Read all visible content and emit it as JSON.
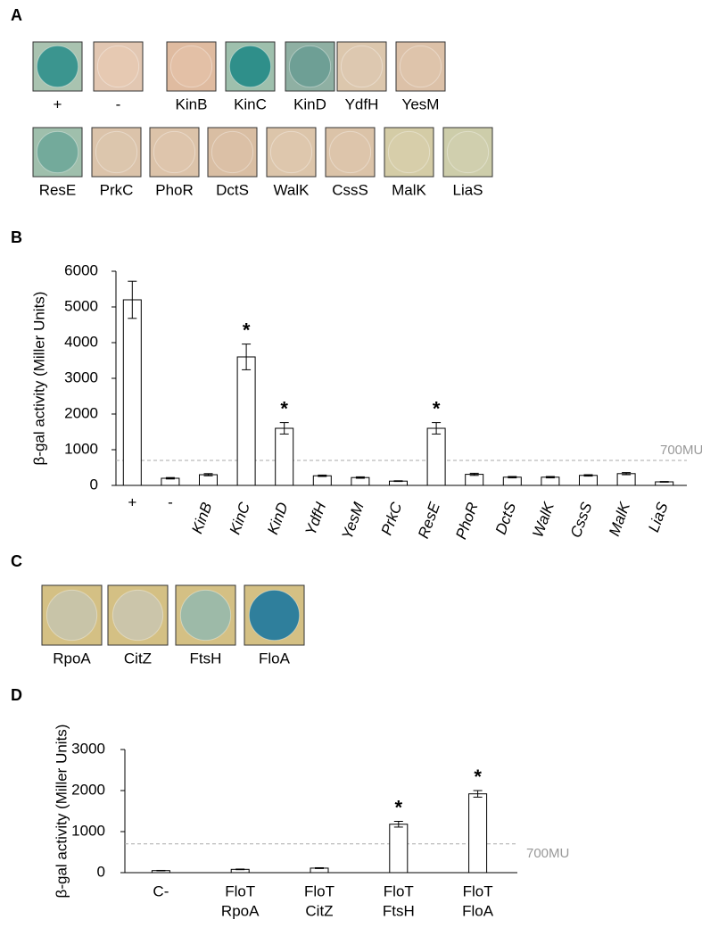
{
  "panel_a": {
    "panel": "A",
    "rows": [
      [
        {
          "label": "+",
          "background": "#a9c3b0",
          "color": "#3b958f"
        },
        {
          "label": "-",
          "background": "#e2c7b2",
          "color": "#e6c9b2"
        },
        {
          "label": "KinB",
          "background": "#dfbba0",
          "color": "#e3c0a6"
        },
        {
          "label": "KinC",
          "background": "#9ec0ad",
          "color": "#2f8f8a"
        },
        {
          "label": "KinD",
          "background": "#8fb0a3",
          "color": "#6e9f95"
        },
        {
          "label": "YdfH",
          "background": "#dcc7ad",
          "color": "#ddc8b0"
        },
        {
          "label": "YesM",
          "background": "#dcc1a8",
          "color": "#dec4ab"
        }
      ],
      [
        {
          "label": "ResE",
          "background": "#9fbfac",
          "color": "#73aa9b"
        },
        {
          "label": "PrkC",
          "background": "#dbc3aa",
          "color": "#dcc6ad"
        },
        {
          "label": "PhoR",
          "background": "#dcc3a9",
          "color": "#dec5ac"
        },
        {
          "label": "DctS",
          "background": "#d9bea3",
          "color": "#dbc0a6"
        },
        {
          "label": "WalK",
          "background": "#dcc5aa",
          "color": "#dec7ad"
        },
        {
          "label": "CssS",
          "background": "#dbc3a8",
          "color": "#ddc5ab"
        },
        {
          "label": "MalK",
          "background": "#d4cca6",
          "color": "#d7ceaa"
        },
        {
          "label": "LiaS",
          "background": "#cdcdaa",
          "color": "#d0cfae"
        }
      ]
    ]
  },
  "chart_data": [
    {
      "type": "bar",
      "panel": "B",
      "y_label": "β-gal activity (Miller Units)",
      "categories": [
        "+",
        "-",
        "KinB",
        "KinC",
        "KinD",
        "YdfH",
        "YesM",
        "PrkC",
        "ResE",
        "PhoR",
        "DctS",
        "WalK",
        "CssS",
        "MalK",
        "LiaS"
      ],
      "italic": [
        false,
        false,
        true,
        true,
        true,
        true,
        true,
        true,
        true,
        true,
        true,
        true,
        true,
        true,
        true
      ],
      "values": [
        5200,
        200,
        300,
        3600,
        1600,
        270,
        220,
        120,
        1600,
        310,
        230,
        230,
        280,
        330,
        100
      ],
      "errors": [
        520,
        20,
        30,
        360,
        160,
        20,
        20,
        10,
        160,
        30,
        20,
        20,
        20,
        30,
        10
      ],
      "significance": [
        null,
        null,
        null,
        "*",
        "*",
        null,
        null,
        null,
        "*",
        null,
        null,
        null,
        null,
        null,
        null
      ],
      "color": "#ffffff",
      "ylim": [
        0,
        6000
      ],
      "yticks": [
        0,
        1000,
        2000,
        3000,
        4000,
        5000,
        6000
      ],
      "reference_line": {
        "value": 700,
        "label": "700MU"
      }
    },
    {
      "type": "bar",
      "panel": "D",
      "y_label": "β-gal activity (Miller Units)",
      "categories": [
        [
          "C-"
        ],
        [
          "FloT",
          "RpoA"
        ],
        [
          "FloT",
          "CitZ"
        ],
        [
          "FloT",
          "FtsH"
        ],
        [
          "FloT",
          "FloA"
        ]
      ],
      "values": [
        50,
        80,
        110,
        1180,
        1920
      ],
      "errors": [
        5,
        8,
        10,
        70,
        80
      ],
      "significance": [
        null,
        null,
        null,
        "*",
        "*"
      ],
      "color": "#ffffff",
      "ylim": [
        0,
        3000
      ],
      "yticks": [
        0,
        1000,
        2000,
        3000
      ],
      "reference_line": {
        "value": 700,
        "label": "700MU"
      }
    }
  ],
  "panel_c": {
    "panel": "C",
    "tiles": [
      {
        "label": "RpoA",
        "background": "#d4c084",
        "color": "#c8c4a8"
      },
      {
        "label": "CitZ",
        "background": "#d4c084",
        "color": "#cbc5aa"
      },
      {
        "label": "FtsH",
        "background": "#d4c084",
        "color": "#9dbaa8"
      },
      {
        "label": "FloA",
        "background": "#d4c084",
        "color": "#2f7f9c"
      }
    ]
  }
}
